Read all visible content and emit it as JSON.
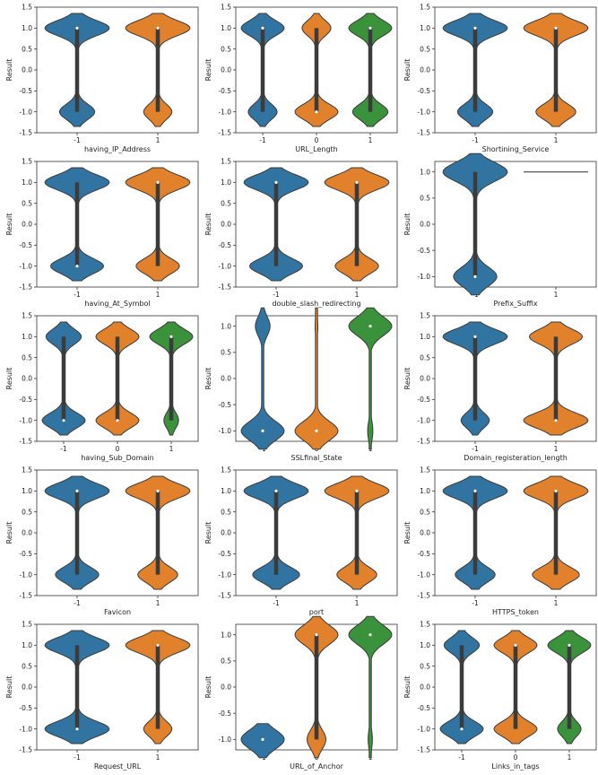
{
  "figure": {
    "colors": {
      "c-1": "#3274a1",
      "c0": "#e1812c",
      "c1": "#3a923a",
      "c1_two_cat": "#e1812c"
    }
  },
  "chart_data": [
    {
      "type": "violin",
      "xlabel": "having_IP_Address",
      "ylabel": "Result",
      "categories": [
        "-1",
        "1"
      ],
      "ylim": [
        -1.5,
        1.5
      ],
      "yticks": [
        "1.5",
        "1.0",
        "0.5",
        "0.0",
        "-0.5",
        "-1.0",
        "-1.5"
      ],
      "series": [
        {
          "category": "-1",
          "share_pos": 0.65,
          "median": 1,
          "q1": -1,
          "q3": 1
        },
        {
          "category": "1",
          "share_pos": 0.7,
          "median": 1,
          "q1": -1,
          "q3": 1
        }
      ]
    },
    {
      "type": "violin",
      "xlabel": "URL_Length",
      "ylabel": "Result",
      "categories": [
        "-1",
        "0",
        "1"
      ],
      "ylim": [
        -1.5,
        1.5
      ],
      "yticks": [
        "1.5",
        "1.0",
        "0.5",
        "0.0",
        "-0.5",
        "-1.0",
        "-1.5"
      ],
      "series": [
        {
          "category": "-1",
          "share_pos": 0.6,
          "median": 1,
          "q1": -1,
          "q3": 1
        },
        {
          "category": "0",
          "share_pos": 0.4,
          "median": -1,
          "q1": -1,
          "q3": 1
        },
        {
          "category": "1",
          "share_pos": 0.55,
          "median": 1,
          "q1": -1,
          "q3": 1
        }
      ]
    },
    {
      "type": "violin",
      "xlabel": "Shortining_Service",
      "ylabel": "Result",
      "categories": [
        "-1",
        "1"
      ],
      "ylim": [
        -1.5,
        1.5
      ],
      "yticks": [
        "1.5",
        "1.0",
        "0.5",
        "0.0",
        "-0.5",
        "-1.0",
        "-1.5"
      ],
      "series": [
        {
          "category": "-1",
          "share_pos": 0.65,
          "median": 1,
          "q1": -1,
          "q3": 1
        },
        {
          "category": "1",
          "share_pos": 0.62,
          "median": 1,
          "q1": -1,
          "q3": 1
        }
      ]
    },
    {
      "type": "violin",
      "xlabel": "having_At_Symbol",
      "ylabel": "Result",
      "categories": [
        "-1",
        "1"
      ],
      "ylim": [
        -1.5,
        1.5
      ],
      "yticks": [
        "1.5",
        "1.0",
        "0.5",
        "0.0",
        "-0.5",
        "-1.0",
        "-1.5"
      ],
      "series": [
        {
          "category": "-1",
          "share_pos": 0.55,
          "median": -1,
          "q1": -1,
          "q3": 1
        },
        {
          "category": "1",
          "share_pos": 0.6,
          "median": 1,
          "q1": -1,
          "q3": 1
        }
      ]
    },
    {
      "type": "violin",
      "xlabel": "double_slash_redirecting",
      "ylabel": "Result",
      "categories": [
        "-1",
        "1"
      ],
      "ylim": [
        -1.5,
        1.5
      ],
      "yticks": [
        "1.5",
        "1.0",
        "0.5",
        "0.0",
        "-0.5",
        "-1.0",
        "-1.5"
      ],
      "series": [
        {
          "category": "-1",
          "share_pos": 0.55,
          "median": 1,
          "q1": -1,
          "q3": 1
        },
        {
          "category": "1",
          "share_pos": 0.6,
          "median": 1,
          "q1": -1,
          "q3": 1
        }
      ]
    },
    {
      "type": "violin",
      "xlabel": "Prefix_Suffix",
      "ylabel": "Result",
      "categories": [
        "-1",
        "1"
      ],
      "ylim": [
        -1.2,
        1.2
      ],
      "yticks": [
        "1.0",
        "0.5",
        "0.0",
        "-0.5",
        "-1.0"
      ],
      "series": [
        {
          "category": "-1",
          "share_pos": 0.6,
          "median": -1,
          "q1": -1,
          "q3": 1
        },
        {
          "category": "1",
          "share_pos": 1.0,
          "median": 1,
          "q1": 1,
          "q3": 1
        }
      ]
    },
    {
      "type": "violin",
      "xlabel": "having_Sub_Domain",
      "ylabel": "Result",
      "categories": [
        "-1",
        "0",
        "1"
      ],
      "ylim": [
        -1.5,
        1.5
      ],
      "yticks": [
        "1.5",
        "1.0",
        "0.5",
        "0.0",
        "-0.5",
        "-1.0",
        "-1.5"
      ],
      "series": [
        {
          "category": "-1",
          "share_pos": 0.45,
          "median": -1,
          "q1": -1,
          "q3": 1
        },
        {
          "category": "0",
          "share_pos": 0.5,
          "median": -1,
          "q1": -1,
          "q3": 1
        },
        {
          "category": "1",
          "share_pos": 0.75,
          "median": 1,
          "q1": -1,
          "q3": 1
        }
      ]
    },
    {
      "type": "violin",
      "xlabel": "SSLfinal_State",
      "ylabel": "Result",
      "categories": [
        "-1",
        "0",
        "1"
      ],
      "ylim": [
        -1.2,
        1.2
      ],
      "yticks": [
        "1.0",
        "0.5",
        "0.0",
        "-0.5",
        "-1.0"
      ],
      "series": [
        {
          "category": "-1",
          "share_pos": 0.25,
          "median": -1,
          "q1": -1,
          "q3": -1
        },
        {
          "category": "0",
          "share_pos": 0.05,
          "median": -1,
          "q1": -1,
          "q3": -1
        },
        {
          "category": "1",
          "share_pos": 0.9,
          "median": 1,
          "q1": 1,
          "q3": 1
        }
      ]
    },
    {
      "type": "violin",
      "xlabel": "Domain_registeration_length",
      "ylabel": "Result",
      "categories": [
        "-1",
        "1"
      ],
      "ylim": [
        -1.5,
        1.5
      ],
      "yticks": [
        "1.5",
        "1.0",
        "0.5",
        "0.0",
        "-0.5",
        "-1.0",
        "-1.5"
      ],
      "series": [
        {
          "category": "-1",
          "share_pos": 0.7,
          "median": 1,
          "q1": -1,
          "q3": 1
        },
        {
          "category": "1",
          "share_pos": 0.45,
          "median": -1,
          "q1": -1,
          "q3": 1
        }
      ]
    },
    {
      "type": "violin",
      "xlabel": "Favicon",
      "ylabel": "Result",
      "categories": [
        "-1",
        "1"
      ],
      "ylim": [
        -1.5,
        1.5
      ],
      "yticks": [
        "1.5",
        "1.0",
        "0.5",
        "0.0",
        "-0.5",
        "-1.0",
        "-1.5"
      ],
      "series": [
        {
          "category": "-1",
          "share_pos": 0.6,
          "median": 1,
          "q1": -1,
          "q3": 1
        },
        {
          "category": "1",
          "share_pos": 0.62,
          "median": 1,
          "q1": -1,
          "q3": 1
        }
      ]
    },
    {
      "type": "violin",
      "xlabel": "port",
      "ylabel": "Result",
      "categories": [
        "-1",
        "1"
      ],
      "ylim": [
        -1.5,
        1.5
      ],
      "yticks": [
        "1.5",
        "1.0",
        "0.5",
        "0.0",
        "-0.5",
        "-1.0",
        "-1.5"
      ],
      "series": [
        {
          "category": "-1",
          "share_pos": 0.58,
          "median": 1,
          "q1": -1,
          "q3": 1
        },
        {
          "category": "1",
          "share_pos": 0.62,
          "median": 1,
          "q1": -1,
          "q3": 1
        }
      ]
    },
    {
      "type": "violin",
      "xlabel": "HTTPS_token",
      "ylabel": "Result",
      "categories": [
        "-1",
        "1"
      ],
      "ylim": [
        -1.5,
        1.5
      ],
      "yticks": [
        "1.5",
        "1.0",
        "0.5",
        "0.0",
        "-0.5",
        "-1.0",
        "-1.5"
      ],
      "series": [
        {
          "category": "-1",
          "share_pos": 0.62,
          "median": 1,
          "q1": -1,
          "q3": 1
        },
        {
          "category": "1",
          "share_pos": 0.58,
          "median": 1,
          "q1": -1,
          "q3": 1
        }
      ]
    },
    {
      "type": "violin",
      "xlabel": "Request_URL",
      "ylabel": "Result",
      "categories": [
        "-1",
        "1"
      ],
      "ylim": [
        -1.5,
        1.5
      ],
      "yticks": [
        "1.5",
        "1.0",
        "0.5",
        "0.0",
        "-0.5",
        "-1.0",
        "-1.5"
      ],
      "series": [
        {
          "category": "-1",
          "share_pos": 0.5,
          "median": -1,
          "q1": -1,
          "q3": 1
        },
        {
          "category": "1",
          "share_pos": 0.7,
          "median": 1,
          "q1": -1,
          "q3": 1
        }
      ]
    },
    {
      "type": "violin",
      "xlabel": "URL_of_Anchor",
      "ylabel": "Result",
      "categories": [
        "-1",
        "0",
        "1"
      ],
      "ylim": [
        -1.2,
        1.2
      ],
      "yticks": [
        "1.0",
        "0.5",
        "0.0",
        "-0.5",
        "-1.0"
      ],
      "series": [
        {
          "category": "-1",
          "share_pos": 0.02,
          "median": -1,
          "q1": -1,
          "q3": -1
        },
        {
          "category": "0",
          "share_pos": 0.7,
          "median": 1,
          "q1": -1,
          "q3": 1
        },
        {
          "category": "1",
          "share_pos": 0.92,
          "median": 1,
          "q1": 1,
          "q3": 1
        }
      ]
    },
    {
      "type": "violin",
      "xlabel": "Links_in_tags",
      "ylabel": "Result",
      "categories": [
        "-1",
        "0",
        "1"
      ],
      "ylim": [
        -1.5,
        1.5
      ],
      "yticks": [
        "1.5",
        "1.0",
        "0.5",
        "0.0",
        "-0.5",
        "-1.0",
        "-1.5"
      ],
      "series": [
        {
          "category": "-1",
          "share_pos": 0.45,
          "median": -1,
          "q1": -1,
          "q3": 1
        },
        {
          "category": "0",
          "share_pos": 0.5,
          "median": 1,
          "q1": -1,
          "q3": 1
        },
        {
          "category": "1",
          "share_pos": 0.65,
          "median": 1,
          "q1": -1,
          "q3": 1
        }
      ]
    }
  ]
}
